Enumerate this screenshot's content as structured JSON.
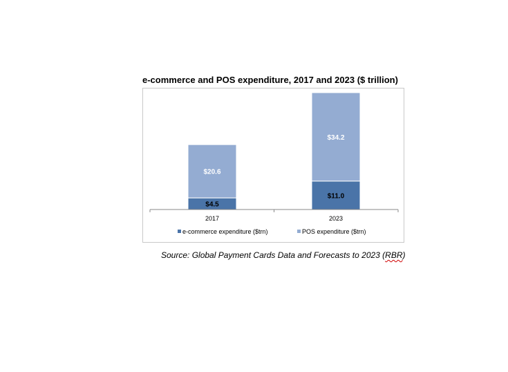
{
  "chart_data": {
    "type": "bar",
    "stacked": true,
    "title": "e-commerce and POS expenditure, 2017 and 2023 ($ trillion)",
    "categories": [
      "2017",
      "2023"
    ],
    "series": [
      {
        "name": "e-commerce expenditure ($trn)",
        "values": [
          4.5,
          11.0
        ],
        "labels": [
          "$4.5",
          "$11.0"
        ],
        "color": "#4a74a8",
        "label_color": "#000000"
      },
      {
        "name": "POS expenditure ($trn)",
        "values": [
          20.6,
          34.2
        ],
        "labels": [
          "$20.6",
          "$34.2"
        ],
        "color": "#94acd2",
        "label_color": "#ffffff"
      }
    ],
    "ylim": [
      0,
      46
    ],
    "grid": false,
    "legend": "bottom"
  },
  "source": {
    "prefix": "Source: Global Payment Cards Data and Forecasts to 2023 (",
    "abbr": "RBR",
    "suffix": ")"
  }
}
